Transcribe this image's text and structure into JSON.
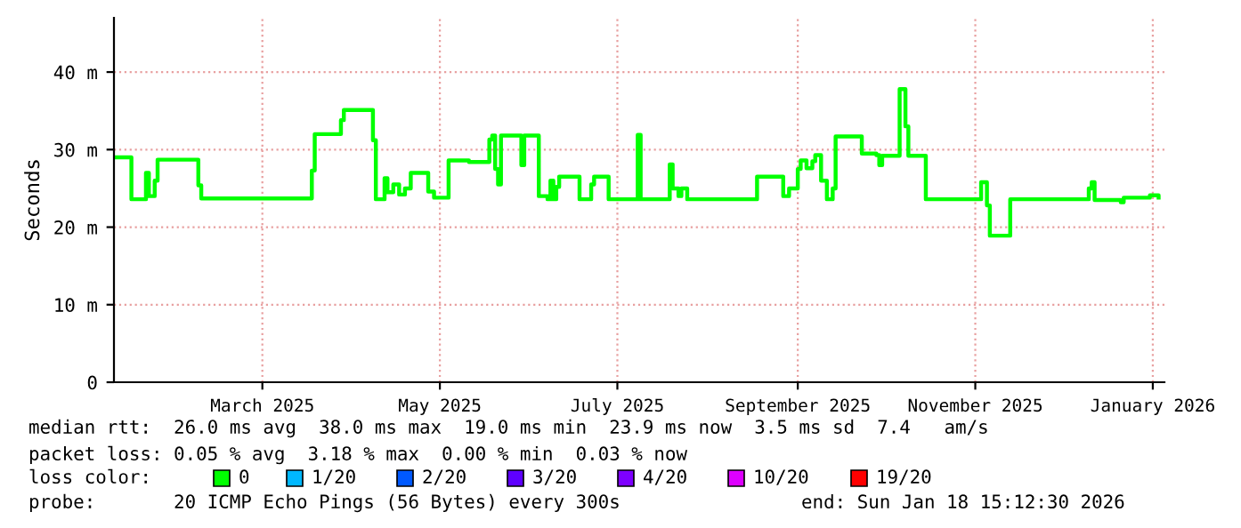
{
  "chart_data": {
    "type": "step",
    "ylabel": "Seconds",
    "legend_title": "loss color:",
    "legend": "bottom",
    "grid": true,
    "xlim": [
      "2025-01-09",
      "2026-01-05"
    ],
    "xticks": [
      {
        "value": "2025-03-01",
        "label": "March 2025"
      },
      {
        "value": "2025-05-01",
        "label": "May 2025"
      },
      {
        "value": "2025-07-01",
        "label": "July 2025"
      },
      {
        "value": "2025-09-01",
        "label": "September 2025"
      },
      {
        "value": "2025-11-01",
        "label": "November 2025"
      },
      {
        "value": "2026-01-01",
        "label": "January 2026"
      }
    ],
    "ylim": [
      0,
      47
    ],
    "yticks": [
      {
        "value": 0,
        "label": "0"
      },
      {
        "value": 10,
        "label": "10 m"
      },
      {
        "value": 20,
        "label": "20 m"
      },
      {
        "value": 30,
        "label": "30 m"
      },
      {
        "value": 40,
        "label": "40 m"
      }
    ],
    "series": [
      {
        "name": "0",
        "color": "#00ff00",
        "x": [
          "2025-01-09",
          "2025-01-15",
          "2025-01-20",
          "2025-01-21",
          "2025-01-23",
          "2025-01-24",
          "2025-02-07",
          "2025-02-08",
          "2025-03-18",
          "2025-03-19",
          "2025-03-28",
          "2025-03-29",
          "2025-04-08",
          "2025-04-09",
          "2025-04-12",
          "2025-04-13",
          "2025-04-15",
          "2025-04-17",
          "2025-04-19",
          "2025-04-21",
          "2025-04-27",
          "2025-04-29",
          "2025-05-04",
          "2025-05-11",
          "2025-05-18",
          "2025-05-19",
          "2025-05-20",
          "2025-05-21",
          "2025-05-22",
          "2025-05-29",
          "2025-05-30",
          "2025-06-04",
          "2025-06-07",
          "2025-06-08",
          "2025-06-09",
          "2025-06-10",
          "2025-06-11",
          "2025-06-18",
          "2025-06-22",
          "2025-06-23",
          "2025-06-28",
          "2025-07-08",
          "2025-07-09",
          "2025-07-19",
          "2025-07-20",
          "2025-07-22",
          "2025-07-23",
          "2025-07-25",
          "2025-08-18",
          "2025-08-27",
          "2025-08-29",
          "2025-09-01",
          "2025-09-02",
          "2025-09-04",
          "2025-09-06",
          "2025-09-07",
          "2025-09-09",
          "2025-09-11",
          "2025-09-13",
          "2025-09-14",
          "2025-09-23",
          "2025-09-28",
          "2025-09-29",
          "2025-09-30",
          "2025-10-06",
          "2025-10-08",
          "2025-10-09",
          "2025-10-15",
          "2025-11-03",
          "2025-11-05",
          "2025-11-06",
          "2025-11-13",
          "2025-12-10",
          "2025-12-11",
          "2025-12-12",
          "2025-12-21",
          "2025-12-22",
          "2025-12-31",
          "2026-01-03"
        ],
        "values": [
          29.0,
          23.6,
          27.0,
          24.0,
          26.0,
          28.7,
          25.4,
          23.7,
          27.3,
          32.0,
          33.8,
          35.1,
          31.2,
          23.6,
          26.3,
          24.5,
          25.5,
          24.2,
          25.0,
          27.0,
          24.6,
          23.8,
          28.6,
          28.4,
          31.3,
          31.8,
          27.5,
          25.5,
          31.8,
          28.0,
          31.8,
          24.0,
          23.6,
          26.0,
          23.6,
          25.2,
          26.5,
          23.6,
          25.5,
          26.5,
          23.6,
          31.9,
          23.6,
          28.1,
          25.0,
          24.0,
          25.0,
          23.6,
          26.5,
          24.0,
          25.0,
          27.5,
          28.6,
          27.6,
          28.5,
          29.3,
          26.0,
          23.6,
          25.0,
          31.7,
          29.5,
          29.3,
          28.0,
          29.2,
          37.8,
          33.0,
          29.2,
          23.6,
          25.8,
          22.8,
          18.9,
          23.6,
          25.0,
          25.8,
          23.5,
          23.2,
          23.8,
          24.1,
          23.8
        ]
      },
      {
        "name": "1/20",
        "color": "#00b8ff"
      },
      {
        "name": "2/20",
        "color": "#0059ff"
      },
      {
        "name": "3/20",
        "color": "#5e00ff"
      },
      {
        "name": "4/20",
        "color": "#7e00ff"
      },
      {
        "name": "10/20",
        "color": "#dd00ff"
      },
      {
        "name": "19/20",
        "color": "#ff0000"
      }
    ],
    "annotations": [
      "median rtt:  26.0 ms avg  38.0 ms max  19.0 ms min  23.9 ms now  3.5 ms sd  7.4   am/s",
      "packet loss: 0.05 % avg  3.18 % max  0.00 % min  0.03 % now",
      "probe:       20 ICMP Echo Pings (56 Bytes) every 300s",
      "end: Sun Jan 18 15:12:30 2026"
    ]
  }
}
